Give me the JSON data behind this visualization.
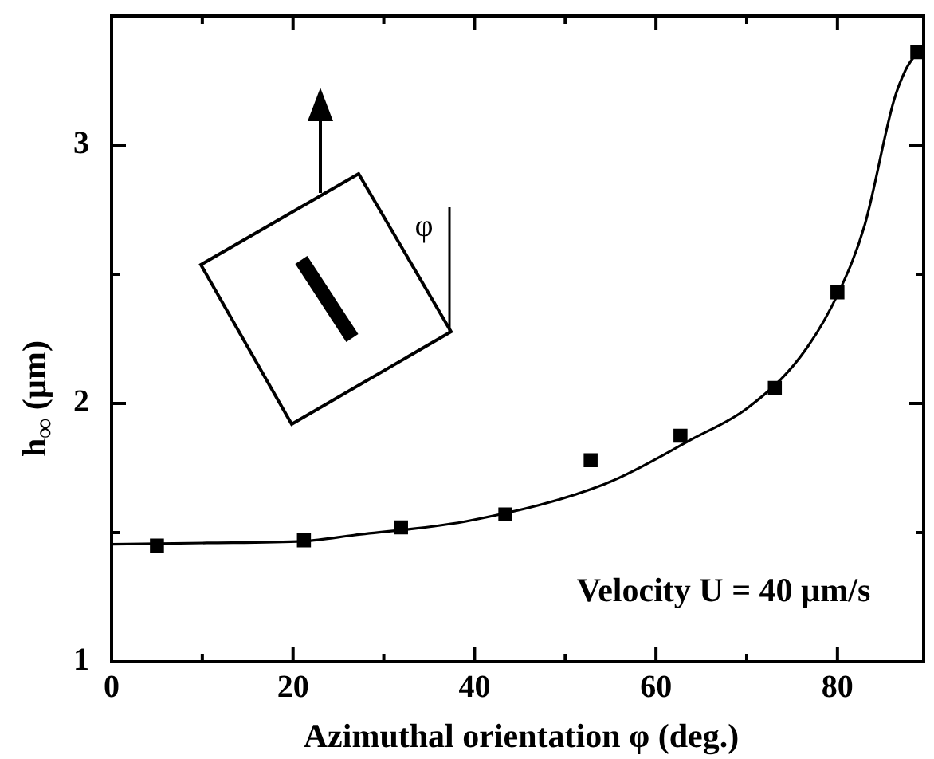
{
  "chart_data": {
    "type": "scatter",
    "xlabel": "Azimuthal orientation φ (deg.)",
    "ylabel": "h$_{∞}$ (µm)",
    "xlim": [
      0,
      89.5
    ],
    "ylim": [
      1,
      3.5
    ],
    "xticks": [
      0,
      {
        "value": 10,
        "label": null
      },
      20,
      {
        "value": 30,
        "label": null
      },
      40,
      {
        "value": 50,
        "label": null
      },
      60,
      {
        "value": 70,
        "label": null
      },
      80
    ],
    "yticks": [
      1,
      {
        "value": 1.5,
        "label": null
      },
      2,
      {
        "value": 2.5,
        "label": null
      },
      3
    ],
    "grid": false,
    "series": [
      {
        "type": "line",
        "marker": "none",
        "color": "#000000",
        "x": [
          0,
          10.5,
          21.2,
          26.7,
          39.6,
          54.5,
          64.2,
          70,
          75.9,
          80,
          83,
          86.2,
          87.5,
          88.8
        ],
        "values": [
          1.455,
          1.46,
          1.467,
          1.49,
          1.547,
          1.69,
          1.866,
          1.98,
          2.18,
          2.42,
          2.69,
          3.17,
          3.29,
          3.36
        ]
      },
      {
        "marker": "square",
        "color": "#000000",
        "x": [
          5,
          21.2,
          31.9,
          43.4,
          52.8,
          62.7,
          73.1,
          80,
          88.8
        ],
        "values": [
          1.45,
          1.47,
          1.52,
          1.57,
          1.78,
          1.875,
          2.06,
          2.43,
          3.36
        ]
      }
    ],
    "annotations": [
      "φ",
      "Velocity U = 40 µm/s"
    ]
  }
}
